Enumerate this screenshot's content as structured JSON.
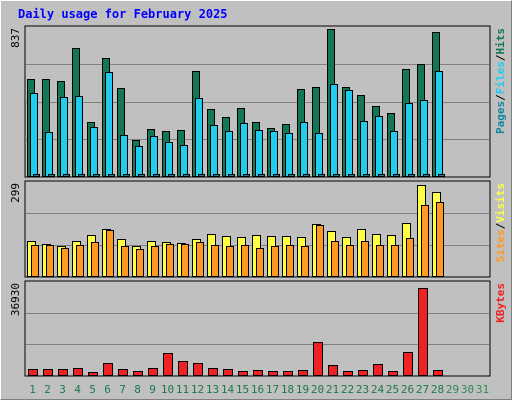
{
  "title": "Daily usage for February 2025",
  "colors": {
    "hits": "#117755",
    "files": "#22ccee",
    "pages": "#118899",
    "visits": "#ffff44",
    "sites": "#ff9922",
    "kbytes": "#ee2222",
    "x_label_weekday": "#1a7a4a",
    "x_label_weekend": "#1a7a4a",
    "x_label_future": "#2e8b57"
  },
  "chart_data": [
    {
      "type": "bar",
      "panel": "hits-files-pages",
      "scale_max_label": "837",
      "ylim": [
        0,
        837
      ],
      "legend": [
        "Pages",
        "/",
        "Files",
        "/",
        "Hits"
      ],
      "series": [
        {
          "name": "Hits",
          "values": [
            555,
            555,
            541,
            730,
            305,
            670,
            499,
            204,
            268,
            257,
            262,
            599,
            384,
            336,
            390,
            308,
            271,
            294,
            495,
            505,
            837,
            509,
            459,
            401,
            356,
            608,
            638,
            818
          ]
        },
        {
          "name": "Files",
          "values": [
            470,
            249,
            450,
            455,
            278,
            591,
            234,
            168,
            227,
            192,
            175,
            442,
            290,
            255,
            304,
            262,
            259,
            244,
            305,
            242,
            521,
            488,
            313,
            343,
            257,
            416,
            432,
            599
          ]
        },
        {
          "name": "Pages",
          "values": [
            60,
            55,
            58,
            60,
            50,
            62,
            52,
            40,
            48,
            44,
            42,
            58,
            50,
            46,
            52,
            48,
            46,
            44,
            52,
            50,
            60,
            58,
            50,
            52,
            48,
            56,
            58,
            62
          ]
        }
      ]
    },
    {
      "type": "bar",
      "panel": "visits-sites",
      "scale_max_label": "299",
      "ylim": [
        0,
        299
      ],
      "legend": [
        "Sites",
        "/",
        "Visits"
      ],
      "series": [
        {
          "name": "Visits",
          "values": [
            115,
            104,
            96,
            115,
            134,
            152,
            121,
            96,
            115,
            111,
            107,
            119,
            138,
            130,
            126,
            134,
            130,
            130,
            126,
            169,
            146,
            126,
            153,
            138,
            134,
            172,
            295,
            274
          ]
        },
        {
          "name": "Sites",
          "values": [
            100,
            102,
            92,
            100,
            111,
            150,
            96,
            88,
            96,
            104,
            104,
            111,
            100,
            96,
            100,
            92,
            96,
            100,
            96,
            165,
            115,
            100,
            115,
            100,
            100,
            123,
            230,
            241
          ]
        }
      ]
    },
    {
      "type": "bar",
      "panel": "kbytes",
      "scale_max_label": "36930",
      "ylim": [
        0,
        36930
      ],
      "legend": [
        "KBytes"
      ],
      "series": [
        {
          "name": "KBytes",
          "values": [
            2500,
            2600,
            2500,
            2700,
            1400,
            4800,
            2400,
            1600,
            2700,
            9100,
            5800,
            4800,
            2700,
            2500,
            1600,
            1900,
            1600,
            1800,
            2100,
            13500,
            4200,
            1800,
            2000,
            4300,
            1600,
            9200,
            35500,
            2000
          ]
        }
      ]
    }
  ],
  "x_labels": [
    {
      "text": "1",
      "kind": "weekend"
    },
    {
      "text": "2",
      "kind": "weekend"
    },
    {
      "text": "3",
      "kind": "weekday"
    },
    {
      "text": "4",
      "kind": "weekday"
    },
    {
      "text": "5",
      "kind": "weekday"
    },
    {
      "text": "6",
      "kind": "weekday"
    },
    {
      "text": "7",
      "kind": "weekday"
    },
    {
      "text": "8",
      "kind": "weekend"
    },
    {
      "text": "9",
      "kind": "weekend"
    },
    {
      "text": "10",
      "kind": "weekday"
    },
    {
      "text": "11",
      "kind": "weekday"
    },
    {
      "text": "12",
      "kind": "weekday"
    },
    {
      "text": "13",
      "kind": "weekday"
    },
    {
      "text": "14",
      "kind": "weekday"
    },
    {
      "text": "15",
      "kind": "weekend"
    },
    {
      "text": "16",
      "kind": "weekend"
    },
    {
      "text": "17",
      "kind": "weekday"
    },
    {
      "text": "18",
      "kind": "weekday"
    },
    {
      "text": "19",
      "kind": "weekday"
    },
    {
      "text": "20",
      "kind": "weekday"
    },
    {
      "text": "21",
      "kind": "weekday"
    },
    {
      "text": "22",
      "kind": "weekend"
    },
    {
      "text": "23",
      "kind": "weekend"
    },
    {
      "text": "24",
      "kind": "weekday"
    },
    {
      "text": "25",
      "kind": "weekday"
    },
    {
      "text": "26",
      "kind": "weekday"
    },
    {
      "text": "27",
      "kind": "weekday"
    },
    {
      "text": "28",
      "kind": "weekday"
    },
    {
      "text": "29",
      "kind": "future"
    },
    {
      "text": "30",
      "kind": "future"
    },
    {
      "text": "31",
      "kind": "future"
    }
  ]
}
